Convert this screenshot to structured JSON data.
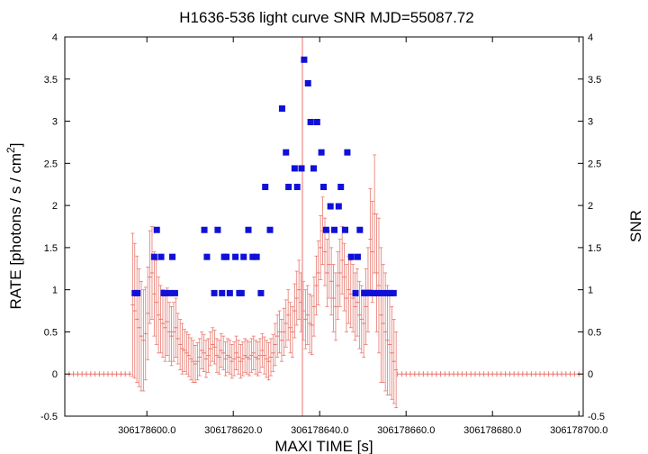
{
  "chart_data": {
    "type": "scatter",
    "title": "H1636-536 light curve  SNR MJD=55087.72",
    "xlabel": "MAXI TIME [s]",
    "ylabel": "RATE [photons / s / cm",
    "ylabel_sup": "2",
    "ylabel_end": "]",
    "y2label": "SNR",
    "xlim": [
      306178581.0,
      306178701.0
    ],
    "ylim": [
      -0.5,
      4.0
    ],
    "xticks": [
      306178600,
      306178620,
      306178640,
      306178660,
      306178680,
      306178700
    ],
    "xtick_labels": [
      "306178600.0",
      "306178620.0",
      "306178640.0",
      "306178660.0",
      "306178680.0",
      "306178700.0"
    ],
    "yticks": [
      -0.5,
      0,
      0.5,
      1,
      1.5,
      2,
      2.5,
      3,
      3.5,
      4
    ],
    "ytick_labels": [
      "-0.5",
      "0",
      "0.5",
      "1",
      "1.5",
      "2",
      "2.5",
      "3",
      "3.5",
      "4"
    ],
    "y2ticks": [
      -0.5,
      0,
      0.5,
      1,
      1.5,
      2,
      2.5,
      3,
      3.5,
      4
    ],
    "y2tick_labels": [
      "-0.5",
      "0",
      "0.5",
      "1",
      "1.5",
      "2",
      "2.5",
      "3",
      "3.5",
      "4"
    ],
    "vline_x": 306178636.0,
    "colors": {
      "rate": "#e8786e",
      "snr": "#1010d8",
      "vline": "#f4a0a0"
    },
    "series": [
      {
        "name": "RATE",
        "x": [
          306178596.7,
          306178597.2,
          306178597.7,
          306178598.2,
          306178598.7,
          306178599.2,
          306178599.7,
          306178600.2,
          306178600.7,
          306178601.2,
          306178601.7,
          306178602.2,
          306178602.7,
          306178603.2,
          306178603.7,
          306178604.2,
          306178604.7,
          306178605.2,
          306178605.7,
          306178606.2,
          306178606.7,
          306178607.2,
          306178607.7,
          306178608.2,
          306178608.7,
          306178609.2,
          306178609.7,
          306178610.2,
          306178610.7,
          306178611.2,
          306178611.7,
          306178612.2,
          306178612.7,
          306178613.2,
          306178613.7,
          306178614.2,
          306178614.7,
          306178615.2,
          306178615.7,
          306178616.2,
          306178616.7,
          306178617.2,
          306178617.7,
          306178618.2,
          306178618.7,
          306178619.2,
          306178619.7,
          306178620.2,
          306178620.7,
          306178621.2,
          306178621.7,
          306178622.2,
          306178622.7,
          306178623.2,
          306178623.7,
          306178624.2,
          306178624.7,
          306178625.2,
          306178625.7,
          306178626.2,
          306178626.7,
          306178627.2,
          306178627.7,
          306178628.2,
          306178628.7,
          306178629.2,
          306178629.7,
          306178630.2,
          306178630.7,
          306178631.2,
          306178631.7,
          306178632.2,
          306178632.7,
          306178633.2,
          306178633.7,
          306178634.2,
          306178634.7,
          306178635.2,
          306178635.7,
          306178636.2,
          306178636.7,
          306178637.2,
          306178637.7,
          306178638.2,
          306178638.7,
          306178639.2,
          306178639.7,
          306178640.2,
          306178640.7,
          306178641.2,
          306178641.7,
          306178642.2,
          306178642.7,
          306178643.2,
          306178643.7,
          306178644.2,
          306178644.7,
          306178645.2,
          306178645.7,
          306178646.2,
          306178646.7,
          306178647.2,
          306178647.7,
          306178648.2,
          306178648.7,
          306178649.2,
          306178649.7,
          306178650.2,
          306178650.7,
          306178651.2,
          306178651.7,
          306178652.2,
          306178652.7,
          306178653.2,
          306178653.7,
          306178654.2,
          306178654.7,
          306178655.2,
          306178655.7,
          306178656.2,
          306178656.7,
          306178657.2,
          306178657.7
        ],
        "y": [
          0.82,
          0.75,
          0.65,
          0.55,
          0.45,
          0.4,
          0.48,
          0.72,
          1.15,
          1.2,
          0.95,
          0.85,
          0.7,
          0.65,
          0.6,
          0.55,
          0.62,
          0.5,
          0.45,
          0.5,
          0.55,
          0.42,
          0.35,
          0.3,
          0.28,
          0.25,
          0.22,
          0.18,
          0.15,
          0.12,
          0.15,
          0.2,
          0.28,
          0.25,
          0.18,
          0.22,
          0.3,
          0.35,
          0.32,
          0.22,
          0.2,
          0.28,
          0.25,
          0.18,
          0.22,
          0.2,
          0.15,
          0.18,
          0.25,
          0.2,
          0.15,
          0.18,
          0.22,
          0.2,
          0.18,
          0.22,
          0.25,
          0.2,
          0.18,
          0.22,
          0.28,
          0.22,
          0.18,
          0.15,
          0.2,
          0.25,
          0.35,
          0.45,
          0.5,
          0.4,
          0.5,
          0.6,
          0.7,
          0.55,
          0.5,
          0.75,
          0.9,
          1.0,
          0.85,
          0.75,
          0.65,
          0.7,
          0.6,
          0.58,
          0.8,
          1.05,
          1.2,
          1.5,
          1.7,
          1.45,
          1.2,
          1.3,
          1.1,
          0.9,
          0.8,
          1.05,
          1.2,
          1.35,
          1.15,
          0.9,
          1.0,
          0.95,
          0.9,
          0.8,
          0.85,
          0.7,
          0.65,
          0.6,
          0.8,
          1.0,
          1.6,
          1.45,
          1.9,
          1.2,
          1.05,
          0.7,
          0.6,
          0.5,
          0.4,
          0.35,
          0.25,
          0.15,
          0.05
        ],
        "err": [
          0.85,
          0.8,
          0.75,
          0.7,
          0.65,
          0.6,
          0.55,
          0.55,
          0.55,
          0.55,
          0.5,
          0.5,
          0.45,
          0.4,
          0.4,
          0.4,
          0.4,
          0.35,
          0.35,
          0.35,
          0.35,
          0.3,
          0.3,
          0.3,
          0.25,
          0.25,
          0.25,
          0.25,
          0.25,
          0.22,
          0.22,
          0.22,
          0.22,
          0.22,
          0.22,
          0.2,
          0.2,
          0.2,
          0.2,
          0.2,
          0.2,
          0.2,
          0.2,
          0.2,
          0.2,
          0.2,
          0.2,
          0.2,
          0.2,
          0.2,
          0.2,
          0.2,
          0.2,
          0.2,
          0.2,
          0.2,
          0.2,
          0.2,
          0.2,
          0.2,
          0.2,
          0.22,
          0.22,
          0.22,
          0.22,
          0.22,
          0.25,
          0.25,
          0.25,
          0.25,
          0.28,
          0.28,
          0.3,
          0.3,
          0.3,
          0.32,
          0.32,
          0.35,
          0.35,
          0.35,
          0.35,
          0.35,
          0.35,
          0.35,
          0.35,
          0.35,
          0.38,
          0.38,
          0.4,
          0.4,
          0.4,
          0.4,
          0.4,
          0.4,
          0.4,
          0.4,
          0.4,
          0.4,
          0.4,
          0.4,
          0.4,
          0.4,
          0.4,
          0.4,
          0.4,
          0.4,
          0.4,
          0.4,
          0.45,
          0.5,
          0.6,
          0.6,
          0.7,
          0.7,
          0.8,
          0.8,
          0.7,
          0.7,
          0.65,
          0.6,
          0.55,
          0.5,
          0.45
        ],
        "baseline_y": 0,
        "baseline_x_ranges": [
          [
            306178582.0,
            306178596.5
          ],
          [
            306178658.0,
            306178700.5
          ]
        ],
        "baseline_step": 1.0
      },
      {
        "name": "SNR",
        "x": [
          306178597.2,
          306178597.8,
          306178601.7,
          306178602.3,
          306178603.3,
          306178603.9,
          306178604.4,
          306178605.3,
          306178605.9,
          306178606.5,
          306178613.3,
          306178613.9,
          306178615.6,
          306178616.4,
          306178617.4,
          306178617.9,
          306178618.4,
          306178619.2,
          306178620.5,
          306178621.4,
          306178621.9,
          306178622.4,
          306178623.5,
          306178624.5,
          306178625.4,
          306178626.4,
          306178627.4,
          306178628.5,
          306178631.3,
          306178632.2,
          306178632.8,
          306178634.2,
          306178634.8,
          306178635.8,
          306178636.4,
          306178637.3,
          306178637.9,
          306178638.6,
          306178639.4,
          306178640.4,
          306178640.9,
          306178641.5,
          306178642.5,
          306178643.4,
          306178644.4,
          306178644.9,
          306178645.9,
          306178646.4,
          306178647.3,
          306178648.3,
          306178648.8,
          306178649.3,
          306178650.3,
          306178651.2,
          306178652.4,
          306178652.9,
          306178653.6,
          306178654.5,
          306178655.6,
          306178656.4,
          306178657.1
        ],
        "y": [
          0.96,
          0.96,
          1.39,
          1.71,
          1.39,
          0.96,
          0.96,
          0.96,
          1.39,
          0.96,
          1.71,
          1.39,
          0.96,
          1.71,
          0.96,
          1.39,
          1.39,
          0.96,
          1.39,
          0.96,
          0.96,
          1.39,
          1.71,
          1.39,
          1.39,
          0.96,
          2.22,
          1.71,
          3.15,
          2.63,
          2.22,
          2.44,
          2.22,
          2.44,
          3.73,
          3.45,
          2.99,
          2.44,
          2.99,
          2.63,
          2.22,
          1.71,
          1.99,
          1.71,
          1.99,
          2.22,
          1.71,
          2.63,
          1.39,
          0.96,
          1.39,
          1.71,
          0.96,
          0.96,
          0.96,
          0.96,
          0.96,
          0.96,
          0.96,
          0.96,
          0.96
        ],
        "y2": [
          0.96,
          0.96,
          1.39,
          1.71,
          1.39,
          0.96,
          0.96,
          0.96,
          1.39,
          0.96,
          1.71,
          1.39,
          0.96,
          1.71,
          0.96,
          1.39,
          1.39,
          0.96,
          1.39,
          0.96,
          0.96,
          1.39,
          1.71,
          1.39,
          1.39,
          0.96,
          2.22,
          1.71,
          3.15,
          2.63,
          2.22,
          2.44,
          2.22,
          2.44,
          3.73,
          3.45,
          2.99,
          2.44,
          2.99,
          2.63,
          2.22,
          1.71,
          1.99,
          1.71,
          1.99,
          2.22,
          1.71,
          2.63,
          1.39,
          0.96,
          1.39,
          1.71,
          0.96,
          0.96,
          0.96,
          0.96,
          0.96,
          0.96,
          0.96,
          0.96,
          0.96
        ]
      }
    ],
    "grid": false,
    "legend": "none"
  }
}
